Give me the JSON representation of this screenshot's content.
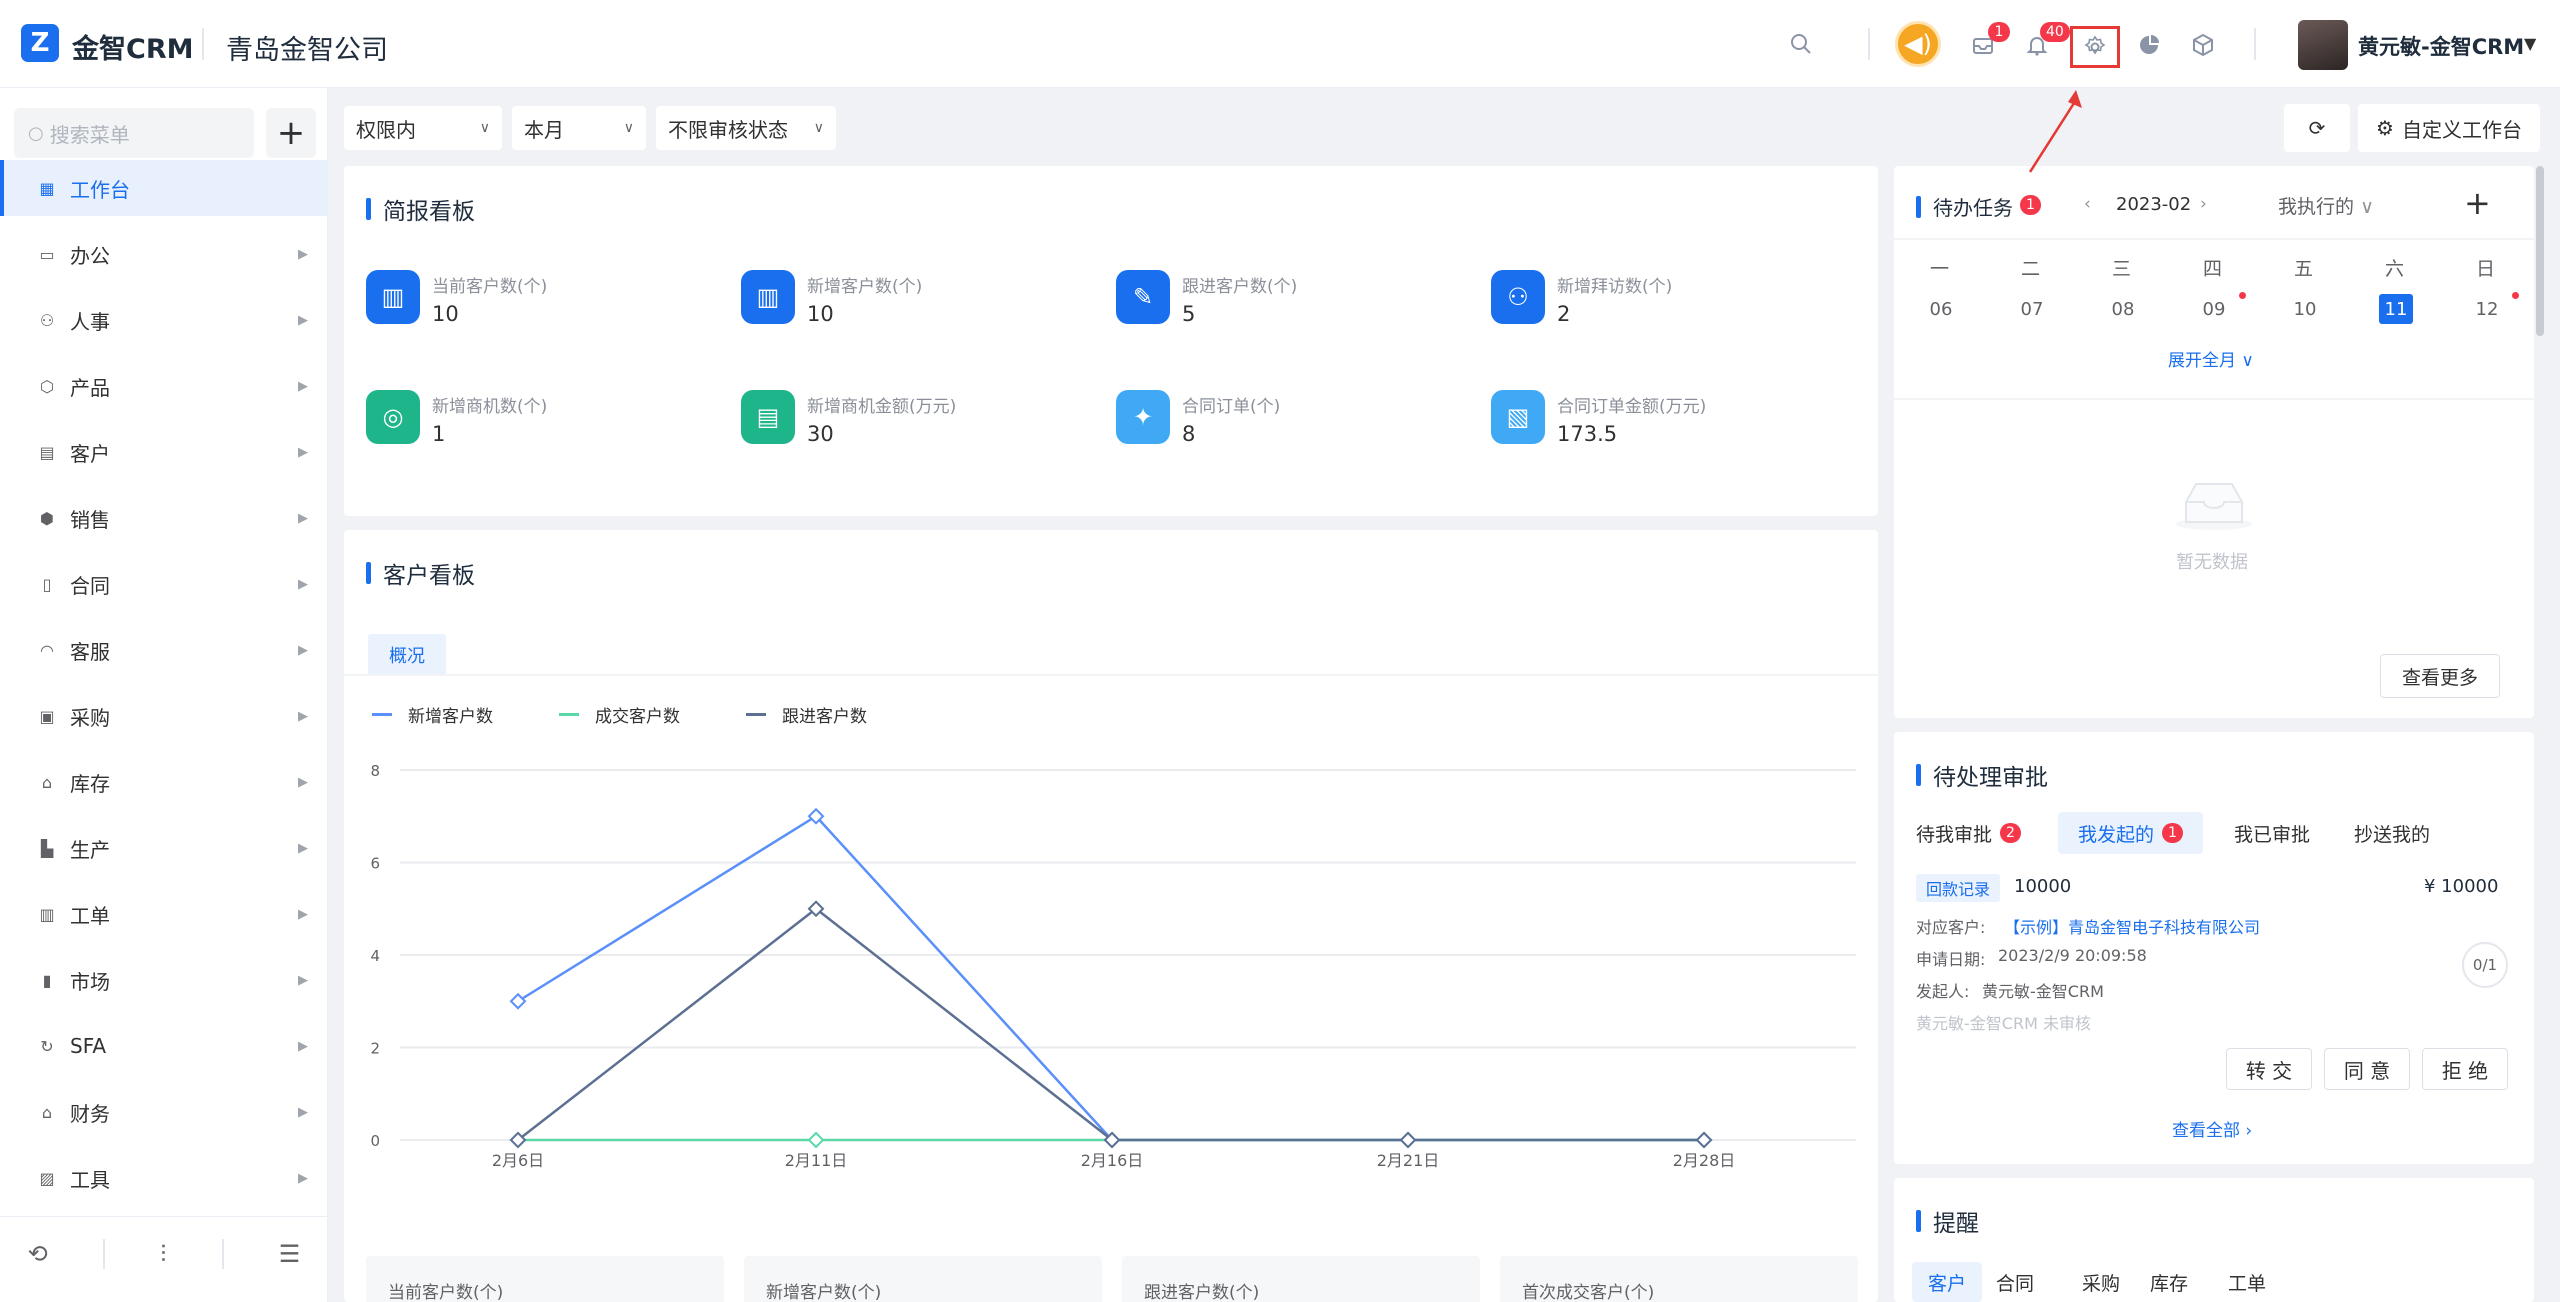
{
  "header": {
    "app_name": "金智CRM",
    "company": "青岛金智公司",
    "mail_badge": "1",
    "bell_badge": "40",
    "user": "黄元敏-金智CRM",
    "colors": {
      "brand": "#1a6fee",
      "badge": "#f5374a",
      "speaker": "#f5a623",
      "highlight": "#e53935"
    }
  },
  "sidebar": {
    "search_placeholder": "搜索菜单",
    "items": [
      {
        "label": "工作台",
        "icon": "dashboard-icon"
      },
      {
        "label": "办公",
        "icon": "monitor-icon"
      },
      {
        "label": "人事",
        "icon": "people-icon"
      },
      {
        "label": "产品",
        "icon": "cube-icon"
      },
      {
        "label": "客户",
        "icon": "chart-bars-icon"
      },
      {
        "label": "销售",
        "icon": "hexagon-icon"
      },
      {
        "label": "合同",
        "icon": "document-icon"
      },
      {
        "label": "客服",
        "icon": "headset-icon"
      },
      {
        "label": "采购",
        "icon": "bag-icon"
      },
      {
        "label": "库存",
        "icon": "warehouse-icon"
      },
      {
        "label": "生产",
        "icon": "factory-icon"
      },
      {
        "label": "工单",
        "icon": "clipboard-icon"
      },
      {
        "label": "市场",
        "icon": "bookmark-icon"
      },
      {
        "label": "SFA",
        "icon": "cycle-icon"
      },
      {
        "label": "财务",
        "icon": "bank-icon"
      },
      {
        "label": "工具",
        "icon": "toolbox-icon"
      }
    ]
  },
  "filters": {
    "scope": "权限内",
    "period": "本月",
    "audit": "不限审核状态",
    "customize": "自定义工作台"
  },
  "brief": {
    "title": "简报看板",
    "stats": [
      {
        "label": "当前客户数(个)",
        "value": "10",
        "color": "#1a6fee"
      },
      {
        "label": "新增客户数(个)",
        "value": "10",
        "color": "#1a6fee"
      },
      {
        "label": "跟进客户数(个)",
        "value": "5",
        "color": "#1a6fee"
      },
      {
        "label": "新增拜访数(个)",
        "value": "2",
        "color": "#1a6fee"
      },
      {
        "label": "新增商机数(个)",
        "value": "1",
        "color": "#1fb58a"
      },
      {
        "label": "新增商机金额(万元)",
        "value": "30",
        "color": "#1fb58a"
      },
      {
        "label": "合同订单(个)",
        "value": "8",
        "color": "#3fa9f5"
      },
      {
        "label": "合同订单金额(万元)",
        "value": "173.5",
        "color": "#3fa9f5"
      }
    ]
  },
  "customer_board": {
    "title": "客户看板",
    "tab": "概况",
    "bottom_cards": [
      "当前客户数(个)",
      "新增客户数(个)",
      "跟进客户数(个)",
      "首次成交客户(个)"
    ]
  },
  "chart_data": {
    "type": "line",
    "x": [
      "2月6日",
      "2月11日",
      "2月16日",
      "2月21日",
      "2月28日"
    ],
    "series": [
      {
        "name": "新增客户数",
        "values": [
          3,
          7,
          0,
          0,
          0
        ],
        "color": "#5b8ff9"
      },
      {
        "name": "成交客户数",
        "values": [
          0,
          0,
          0,
          0,
          0
        ],
        "color": "#5ad8a6"
      },
      {
        "name": "跟进客户数",
        "values": [
          0,
          5,
          0,
          0,
          0
        ],
        "color": "#5d7092"
      }
    ],
    "yticks": [
      "0",
      "2",
      "4",
      "6",
      "8"
    ],
    "ylim": [
      0,
      8
    ],
    "grid": true,
    "legend": "top-left"
  },
  "tasks": {
    "title": "待办任务",
    "badge": "1",
    "month": "2023-02",
    "filter": "我执行的",
    "weekdays": [
      "一",
      "二",
      "三",
      "四",
      "五",
      "六",
      "日"
    ],
    "days": [
      "06",
      "07",
      "08",
      "09",
      "10",
      "11",
      "12"
    ],
    "expand": "展开全月",
    "empty": "暂无数据",
    "more": "查看更多"
  },
  "approvals": {
    "title": "待处理审批",
    "tabs": [
      {
        "label": "待我审批",
        "badge": "2"
      },
      {
        "label": "我发起的",
        "badge": "1"
      },
      {
        "label": "我已审批",
        "badge": ""
      },
      {
        "label": "抄送我的",
        "badge": ""
      }
    ],
    "item": {
      "tag": "回款记录",
      "number": "10000",
      "amount": "¥ 10000",
      "customer_label": "对应客户:",
      "customer": "【示例】青岛金智电子科技有限公司",
      "date_label": "申请日期:",
      "date": "2023/2/9 20:09:58",
      "initiator_label": "发起人:",
      "initiator": "黄元敏-金智CRM",
      "status": "黄元敏-金智CRM 未审核",
      "progress": "0/1"
    },
    "actions": [
      "转 交",
      "同 意",
      "拒 绝"
    ],
    "view_all": "查看全部"
  },
  "reminders": {
    "title": "提醒",
    "tabs": [
      "客户",
      "合同",
      "采购",
      "库存",
      "工单"
    ]
  }
}
